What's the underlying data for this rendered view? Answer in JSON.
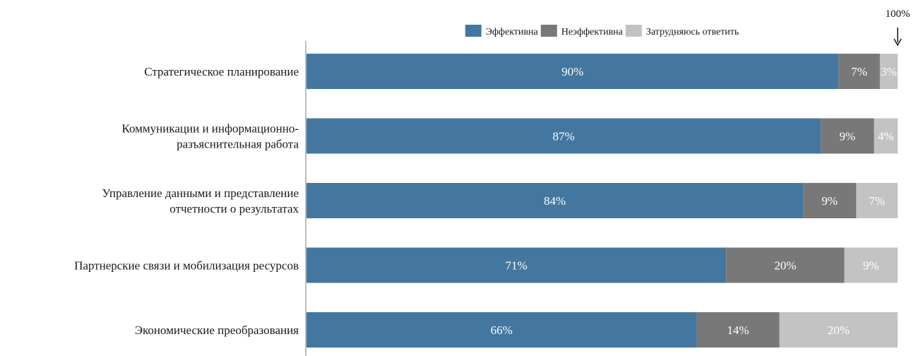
{
  "chart_data": {
    "type": "bar",
    "orientation": "horizontal",
    "stacked": true,
    "title": "",
    "categories": [
      [
        "Стратегическое планирование"
      ],
      [
        "Коммуникации и информационно-",
        "разъяснительная работа"
      ],
      [
        "Управление данными и представление",
        "отчетности о результатах"
      ],
      [
        "Партнерские связи и мобилизация ресурсов"
      ],
      [
        "Экономические преобразования"
      ]
    ],
    "series": [
      {
        "name": "Эффективна",
        "color": "#43779f",
        "values": [
          90,
          87,
          84,
          71,
          66
        ]
      },
      {
        "name": "Неэффективна",
        "color": "#787878",
        "values": [
          7,
          9,
          9,
          20,
          14
        ]
      },
      {
        "name": "Затрудняюсь ответить",
        "color": "#c3c3c3",
        "values": [
          3,
          4,
          7,
          9,
          20
        ]
      }
    ],
    "value_suffix": "%",
    "xlim": [
      0,
      100
    ],
    "legend_position": "top",
    "marker_label": "100%"
  }
}
